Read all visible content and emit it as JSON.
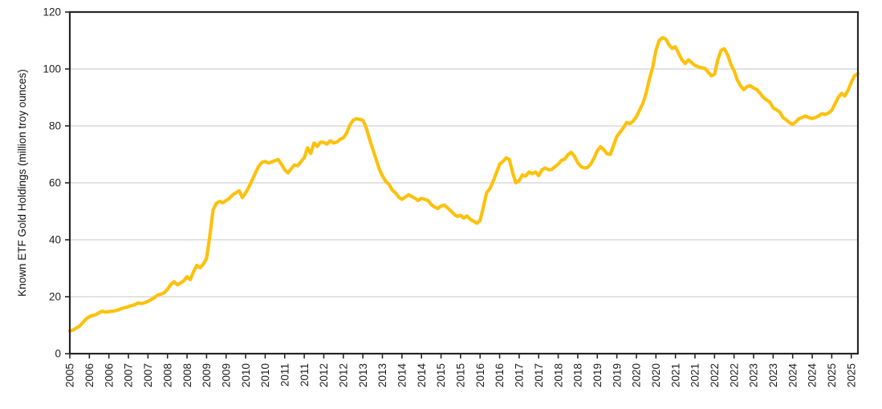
{
  "chart_data": {
    "type": "line",
    "title": "",
    "xlabel": "",
    "ylabel": "Known ETF Gold Holdings (million troy ounces)",
    "ylim": [
      0,
      120
    ],
    "xlim": [
      2005.5,
      2025.67
    ],
    "yticks": [
      0,
      20,
      40,
      60,
      80,
      100,
      120
    ],
    "grid": "horizontal",
    "legend_position": "none",
    "x_tick_values": [
      2005.5,
      2006.0,
      2006.5,
      2007.0,
      2007.5,
      2008.0,
      2008.5,
      2009.0,
      2009.5,
      2010.0,
      2010.5,
      2011.0,
      2011.5,
      2012.0,
      2012.5,
      2013.0,
      2013.5,
      2014.0,
      2014.5,
      2015.0,
      2015.5,
      2016.0,
      2016.5,
      2017.0,
      2017.5,
      2018.0,
      2018.5,
      2019.0,
      2019.5,
      2020.0,
      2020.5,
      2021.0,
      2021.5,
      2022.0,
      2022.5,
      2023.0,
      2023.5,
      2024.0,
      2024.5,
      2025.0,
      2025.5
    ],
    "x_tick_labels": [
      "2005",
      "2006",
      "2006",
      "2007",
      "2007",
      "2008",
      "2008",
      "2009",
      "2009",
      "2010",
      "2010",
      "2011",
      "2011",
      "2012",
      "2012",
      "2013",
      "2013",
      "2014",
      "2014",
      "2015",
      "2015",
      "2016",
      "2016",
      "2017",
      "2017",
      "2018",
      "2018",
      "2019",
      "2019",
      "2020",
      "2020",
      "2021",
      "2021",
      "2022",
      "2022",
      "2023",
      "2023",
      "2024",
      "2024",
      "2025",
      "2025"
    ],
    "series": [
      {
        "name": "Known ETF Gold Holdings",
        "color": "#FDC10D",
        "x_start_decimal_year": 2005.5,
        "x_step_months": 1,
        "values": [
          8.0,
          8.3,
          9.0,
          9.7,
          10.9,
          12.2,
          13.0,
          13.4,
          13.7,
          14.4,
          14.9,
          14.6,
          14.8,
          14.9,
          15.1,
          15.4,
          15.9,
          16.2,
          16.5,
          16.9,
          17.2,
          17.8,
          17.6,
          17.9,
          18.4,
          19.0,
          19.7,
          20.6,
          20.9,
          21.4,
          22.6,
          24.3,
          25.3,
          24.2,
          24.8,
          25.6,
          27.0,
          26.0,
          28.8,
          31.0,
          30.2,
          31.4,
          33.5,
          41.5,
          50.5,
          52.8,
          53.5,
          53.0,
          53.8,
          54.5,
          55.8,
          56.5,
          57.2,
          54.8,
          56.5,
          58.5,
          61.0,
          63.5,
          65.8,
          67.2,
          67.5,
          67.0,
          67.3,
          67.8,
          68.2,
          66.5,
          64.6,
          63.5,
          65.0,
          66.3,
          66.0,
          67.5,
          68.8,
          72.3,
          70.3,
          74.0,
          72.8,
          74.3,
          74.2,
          73.6,
          74.8,
          74.0,
          74.3,
          75.3,
          75.8,
          77.5,
          80.3,
          82.0,
          82.5,
          82.3,
          82.0,
          79.5,
          75.5,
          72.0,
          68.5,
          65.0,
          62.5,
          60.5,
          59.5,
          57.5,
          56.5,
          55.0,
          54.2,
          55.0,
          55.8,
          55.2,
          54.6,
          53.8,
          54.6,
          54.2,
          53.8,
          52.4,
          51.5,
          51.0,
          51.8,
          52.2,
          51.2,
          50.2,
          49.0,
          48.2,
          48.6,
          47.6,
          48.4,
          47.2,
          46.5,
          45.8,
          46.8,
          51.5,
          56.5,
          58.0,
          60.5,
          63.5,
          66.5,
          67.5,
          68.8,
          68.2,
          63.5,
          60.0,
          60.8,
          62.8,
          62.4,
          63.8,
          63.2,
          63.8,
          62.5,
          64.6,
          65.2,
          64.6,
          64.7,
          65.7,
          66.6,
          67.9,
          68.3,
          69.9,
          70.7,
          69.3,
          67.1,
          65.7,
          65.2,
          65.4,
          66.6,
          68.7,
          71.3,
          72.7,
          71.6,
          70.2,
          70.0,
          73.1,
          76.3,
          77.8,
          79.3,
          81.2,
          80.8,
          81.7,
          83.2,
          85.6,
          88.0,
          91.5,
          96.5,
          100.5,
          106.5,
          110.0,
          111.0,
          110.5,
          108.5,
          107.2,
          107.8,
          105.4,
          103.2,
          101.9,
          103.2,
          102.2,
          101.2,
          100.8,
          100.4,
          100.2,
          99.0,
          97.6,
          98.1,
          103.2,
          106.5,
          107.1,
          105.0,
          101.7,
          99.4,
          96.1,
          94.1,
          92.7,
          93.8,
          94.1,
          93.3,
          92.8,
          91.4,
          90.0,
          89.1,
          88.3,
          86.3,
          85.7,
          84.9,
          83.0,
          82.1,
          81.2,
          80.5,
          81.5,
          82.6,
          83.0,
          83.5,
          82.9,
          82.6,
          83.0,
          83.5,
          84.3,
          84.0,
          84.5,
          85.5,
          87.7,
          90.0,
          91.4,
          90.5,
          92.5,
          95.3,
          97.6,
          98.3
        ]
      }
    ]
  },
  "colors": {
    "line": "#FDC10D",
    "grid": "#D9D9D9",
    "axis": "#262626",
    "tick_text": "#1F1F1F",
    "background": "#FFFFFF"
  }
}
